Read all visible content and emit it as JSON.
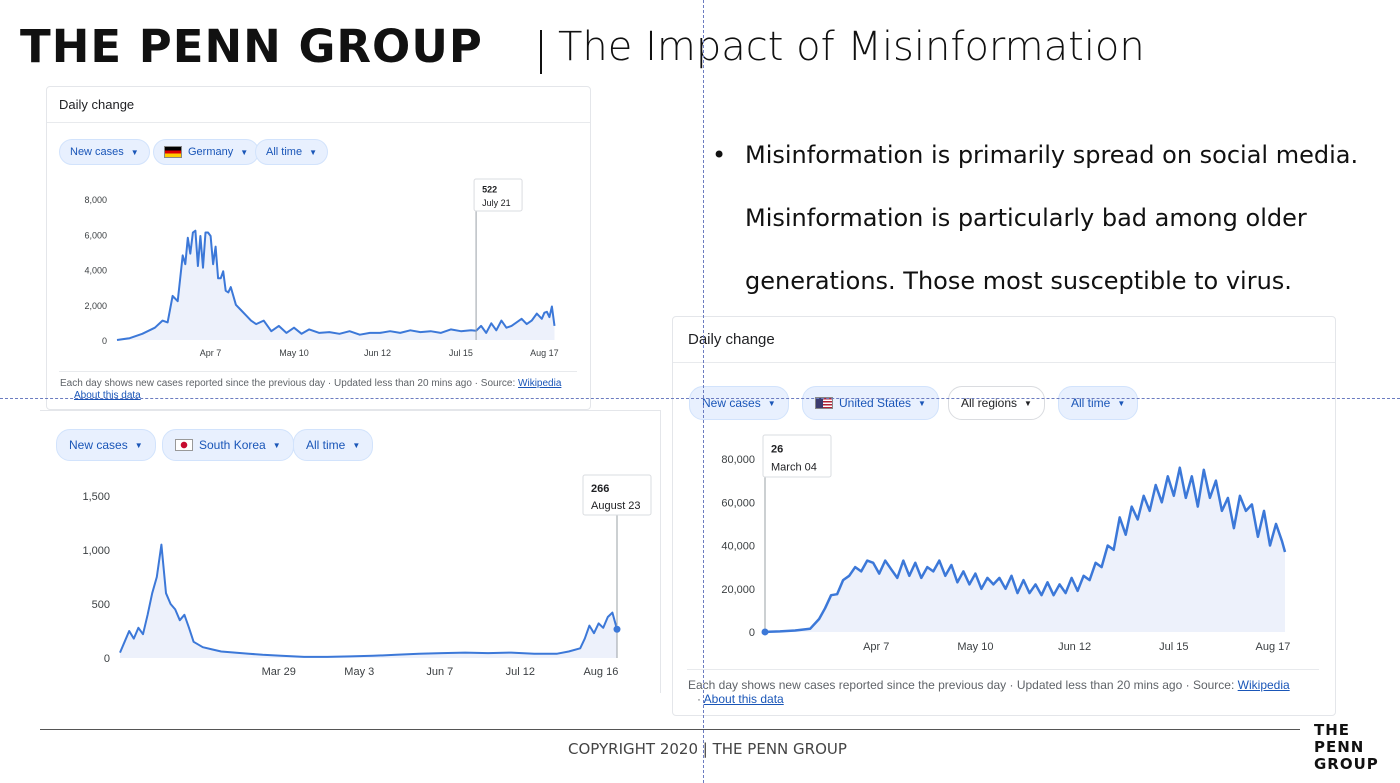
{
  "header": {
    "logo": "THE PENN GROUP",
    "separator": "|",
    "title": "The Impact of Misinformation"
  },
  "bullets": {
    "symbol": "•",
    "lines": [
      "Misinformation is primarily spread on social media.",
      "Misinformation is particularly bad among older",
      "generations.  Those most susceptible to virus."
    ]
  },
  "footer": {
    "copyright": "COPYRIGHT 2020 | THE PENN GROUP",
    "logo_lines": [
      "THE",
      "PENN",
      "GROUP"
    ]
  },
  "widgets": {
    "germany": {
      "heading": "Daily change",
      "chips": {
        "metric": "New cases",
        "country": "Germany",
        "range": "All time"
      },
      "footer": "Each day shows new cases reported since the previous day · Updated less than 20 mins ago  ·  Source:",
      "source": "Wikipedia",
      "about": "About this data"
    },
    "korea": {
      "chips": {
        "metric": "New cases",
        "country": "South Korea",
        "range": "All time"
      }
    },
    "us": {
      "heading": "Daily change",
      "chips": {
        "metric": "New cases",
        "country": "United States",
        "regions": "All regions",
        "range": "All time"
      },
      "footer": "Each day shows new cases reported since the previous day · Updated less than 20 mins ago  ·  Source:",
      "source": "Wikipedia",
      "about": "About this data"
    }
  },
  "chart_data": [
    {
      "type": "area",
      "country": "Germany",
      "yticks": [
        "0",
        "2,000",
        "4,000",
        "6,000",
        "8,000"
      ],
      "ylim": [
        0,
        8000
      ],
      "xticks": [
        "Apr 7",
        "May 10",
        "Jun 12",
        "Jul 15",
        "Aug 17"
      ],
      "xtick_day": [
        37,
        70,
        103,
        136,
        169
      ],
      "xlim": [
        0,
        174
      ],
      "tooltip": {
        "value": "522",
        "date": "July 21",
        "day": 142
      },
      "line_color": "#3c78d8",
      "x": [
        0,
        5,
        10,
        15,
        18,
        20,
        22,
        24,
        26,
        27,
        28,
        29,
        30,
        31,
        32,
        33,
        34,
        35,
        36,
        37,
        38,
        39,
        40,
        41,
        42,
        43,
        44,
        45,
        47,
        49,
        51,
        53,
        55,
        58,
        61,
        64,
        67,
        70,
        73,
        76,
        80,
        84,
        88,
        92,
        96,
        100,
        104,
        108,
        112,
        116,
        120,
        124,
        128,
        132,
        136,
        140,
        142,
        144,
        146,
        148,
        150,
        152,
        154,
        156,
        158,
        160,
        162,
        164,
        166,
        168,
        169,
        170,
        171,
        172,
        173
      ],
      "y": [
        0,
        100,
        350,
        700,
        1100,
        1000,
        2500,
        2200,
        4800,
        4300,
        5800,
        4900,
        6100,
        6200,
        4200,
        5900,
        4100,
        6100,
        6100,
        5900,
        4300,
        5300,
        3500,
        3500,
        3900,
        2800,
        2700,
        3000,
        2000,
        1700,
        1400,
        1100,
        900,
        1100,
        500,
        800,
        400,
        700,
        350,
        600,
        400,
        450,
        350,
        500,
        300,
        400,
        400,
        500,
        400,
        550,
        450,
        500,
        400,
        600,
        500,
        550,
        522,
        800,
        400,
        950,
        550,
        1100,
        700,
        800,
        1000,
        1200,
        900,
        1100,
        1500,
        1200,
        1550,
        1600,
        1300,
        1900,
        800
      ]
    },
    {
      "type": "area",
      "country": "South Korea",
      "yticks": [
        "0",
        "500",
        "1,000",
        "1,500"
      ],
      "ylim": [
        0,
        1500
      ],
      "xticks": [
        "Mar 29",
        "May 3",
        "Jun 7",
        "Jul 12",
        "Aug 16"
      ],
      "xtick_day": [
        69,
        104,
        139,
        174,
        209
      ],
      "xlim": [
        0,
        216
      ],
      "tooltip": {
        "value": "266",
        "date": "August 23"
      },
      "line_color": "#3c78d8",
      "x": [
        0,
        2,
        4,
        6,
        8,
        10,
        12,
        14,
        16,
        18,
        20,
        22,
        24,
        26,
        28,
        30,
        32,
        36,
        40,
        44,
        50,
        56,
        62,
        70,
        80,
        90,
        100,
        110,
        120,
        130,
        140,
        150,
        160,
        170,
        180,
        190,
        195,
        200,
        202,
        204,
        206,
        208,
        210,
        212,
        214,
        216
      ],
      "y": [
        50,
        150,
        250,
        180,
        280,
        220,
        400,
        600,
        750,
        1050,
        600,
        500,
        450,
        350,
        400,
        280,
        150,
        100,
        80,
        60,
        50,
        40,
        30,
        20,
        10,
        10,
        15,
        20,
        30,
        40,
        45,
        50,
        45,
        50,
        40,
        40,
        60,
        90,
        180,
        300,
        230,
        320,
        280,
        380,
        420,
        266
      ]
    },
    {
      "type": "area",
      "country": "United States",
      "yticks": [
        "0",
        "20,000",
        "40,000",
        "60,000",
        "80,000"
      ],
      "ylim": [
        0,
        80000
      ],
      "xticks": [
        "Apr 7",
        "May 10",
        "Jun 12",
        "Jul 15",
        "Aug 17"
      ],
      "xtick_day": [
        37,
        70,
        103,
        136,
        169
      ],
      "xlim": [
        0,
        174
      ],
      "tooltip": {
        "value": "26",
        "date": "March 04",
        "day": 0
      },
      "line_color": "#3c78d8",
      "x": [
        0,
        5,
        10,
        15,
        18,
        20,
        22,
        24,
        26,
        28,
        30,
        32,
        34,
        36,
        38,
        40,
        42,
        44,
        46,
        48,
        50,
        52,
        54,
        56,
        58,
        60,
        62,
        64,
        66,
        68,
        70,
        72,
        74,
        76,
        78,
        80,
        82,
        84,
        86,
        88,
        90,
        92,
        94,
        96,
        98,
        100,
        102,
        104,
        106,
        108,
        110,
        112,
        114,
        116,
        118,
        120,
        122,
        124,
        126,
        128,
        130,
        132,
        134,
        136,
        138,
        140,
        142,
        144,
        146,
        148,
        150,
        152,
        154,
        156,
        158,
        160,
        162,
        164,
        166,
        168,
        170,
        172,
        173
      ],
      "y": [
        26,
        300,
        700,
        1500,
        6000,
        11000,
        17000,
        17500,
        24000,
        26000,
        30000,
        28000,
        33000,
        32000,
        27000,
        33000,
        29000,
        25000,
        33000,
        26000,
        32000,
        25000,
        30000,
        28000,
        33000,
        26000,
        31000,
        23000,
        28000,
        22000,
        27000,
        20000,
        25000,
        22000,
        25000,
        20000,
        26000,
        18000,
        24000,
        18000,
        22000,
        17000,
        23000,
        17000,
        22000,
        18000,
        25000,
        19000,
        26000,
        24000,
        32000,
        30000,
        40000,
        38000,
        53000,
        45000,
        58000,
        52000,
        63000,
        56000,
        68000,
        60000,
        72000,
        63000,
        76000,
        62000,
        72000,
        58000,
        75000,
        62000,
        70000,
        56000,
        62000,
        48000,
        63000,
        56000,
        59000,
        44000,
        56000,
        40000,
        50000,
        42000,
        37000
      ]
    }
  ]
}
